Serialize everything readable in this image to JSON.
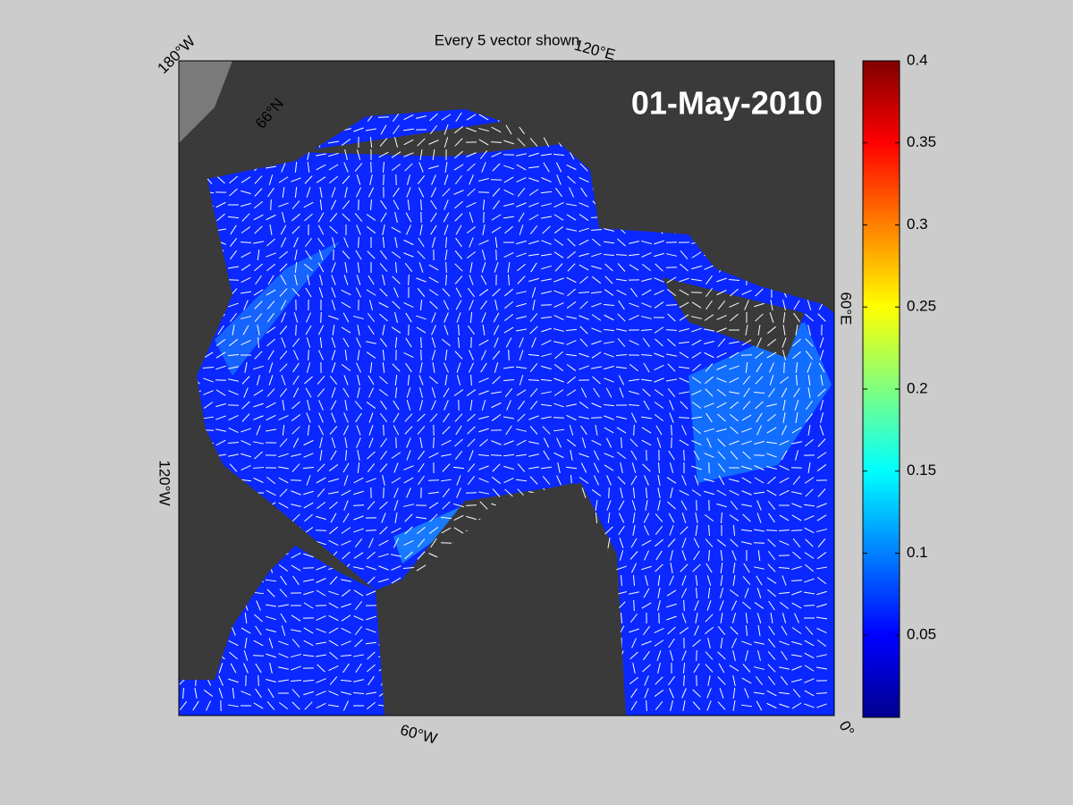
{
  "title": "Every 5 vector shown",
  "date_label": "01-May-2010",
  "map": {
    "lon_labels": [
      "180°W",
      "120°E",
      "60°E",
      "0°",
      "60°W",
      "120°W"
    ],
    "lat_labels": [
      "66°N"
    ]
  },
  "colorbar": {
    "colormap": "jet",
    "lim": [
      0,
      0.4
    ],
    "ticks": [
      0.05,
      0.1,
      0.15,
      0.2,
      0.25,
      0.3,
      0.35,
      0.4
    ]
  }
}
